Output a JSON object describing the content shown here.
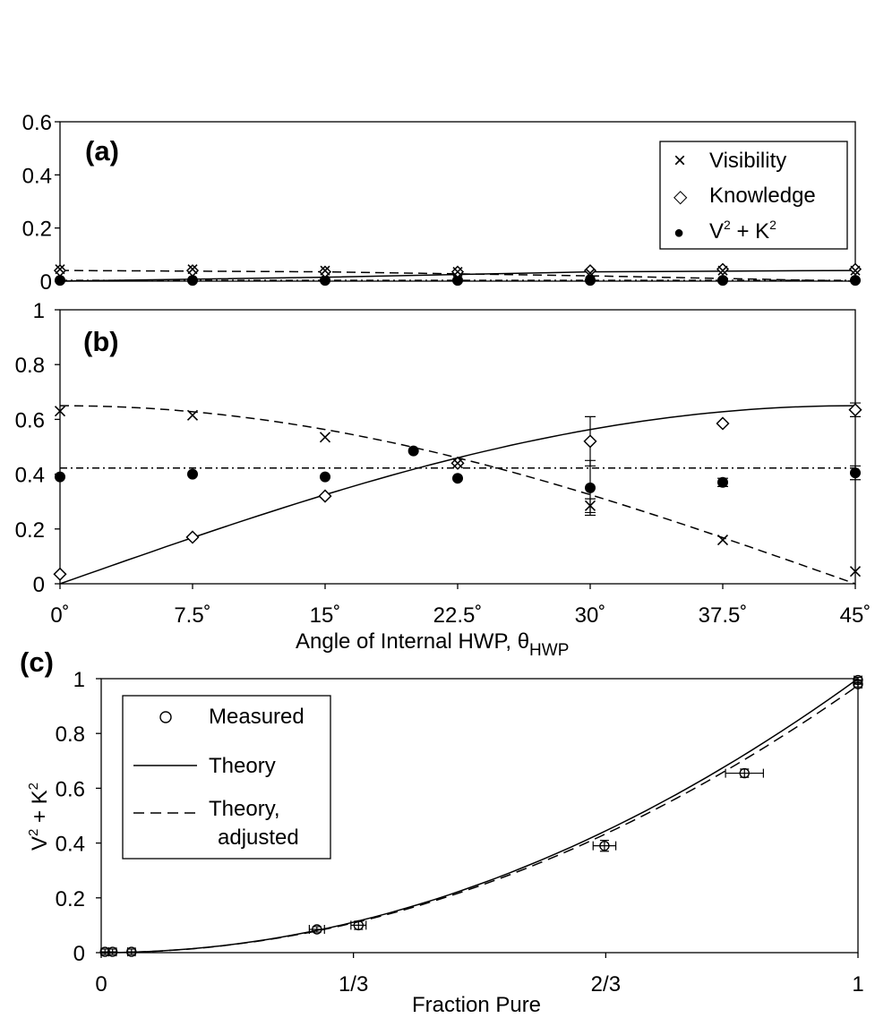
{
  "figure": {
    "xaxis_top_label": "Angle of Internal HWP, θ",
    "xaxis_top_label_sub": "HWP",
    "xaxis_bottom_label": "Fraction Pure",
    "yaxis_c_label": "V² + K²"
  },
  "chart_data": [
    {
      "id": "a",
      "type": "scatter",
      "panel_label": "(a)",
      "xlim": [
        0,
        45
      ],
      "ylim": [
        0,
        0.6
      ],
      "yticks": [
        0,
        0.2,
        0.4,
        0.6
      ],
      "ytick_labels": [
        "0",
        "0.2",
        "0.4",
        "0.6"
      ],
      "x": [
        0,
        7.5,
        15,
        22.5,
        30,
        37.5,
        45
      ],
      "legend": [
        {
          "marker": "×",
          "label": "Visibility"
        },
        {
          "marker": "◇",
          "label": "Knowledge"
        },
        {
          "marker": "●",
          "label": "V² + K²",
          "label_main1": "V",
          "label_sup1": "2",
          "label_mid": " + K",
          "label_sup2": "2"
        }
      ],
      "legend_position": "top-right",
      "series": [
        {
          "name": "Visibility",
          "values": [
            0.045,
            0.045,
            0.04,
            0.035,
            0.03,
            0.04,
            0.04
          ]
        },
        {
          "name": "Knowledge",
          "values": [
            0.04,
            0.04,
            0.035,
            0.035,
            0.04,
            0.045,
            0.045
          ]
        },
        {
          "name": "V² + K²",
          "values": [
            0.003,
            0.003,
            0.003,
            0.003,
            0.003,
            0.003,
            0.003
          ]
        }
      ],
      "theory": {
        "solid": [
          [
            0,
            0.0
          ],
          [
            15,
            0.015
          ],
          [
            30,
            0.035
          ],
          [
            45,
            0.04
          ]
        ],
        "dashed": [
          [
            0,
            0.04
          ],
          [
            15,
            0.035
          ],
          [
            30,
            0.02
          ],
          [
            45,
            0.0
          ]
        ],
        "dashdot": [
          [
            0,
            0.003
          ],
          [
            45,
            0.003
          ]
        ]
      }
    },
    {
      "id": "b",
      "type": "scatter",
      "panel_label": "(b)",
      "xlim": [
        0,
        45
      ],
      "ylim": [
        0,
        1
      ],
      "yticks": [
        0,
        0.2,
        0.4,
        0.6,
        0.8,
        1
      ],
      "ytick_labels": [
        "0",
        "0.2",
        "0.4",
        "0.6",
        "0.8",
        "1"
      ],
      "xticks": [
        0,
        7.5,
        15,
        22.5,
        30,
        37.5,
        45
      ],
      "xtick_labels": [
        "0˚",
        "7.5˚",
        "15˚",
        "22.5˚",
        "30˚",
        "37.5˚",
        "45˚"
      ],
      "series": [
        {
          "name": "Visibility",
          "x": [
            0,
            7.5,
            15,
            22.5,
            30,
            37.5,
            45
          ],
          "values": [
            0.63,
            0.615,
            0.535,
            0.44,
            0.285,
            0.16,
            0.045
          ],
          "err": [
            0.01,
            0.01,
            0.01,
            0.01,
            0.025,
            0.01,
            0.01
          ]
        },
        {
          "name": "Knowledge",
          "x": [
            0,
            7.5,
            15,
            22.5,
            30,
            37.5,
            45
          ],
          "values": [
            0.035,
            0.17,
            0.32,
            0.44,
            0.52,
            0.585,
            0.635
          ],
          "err": [
            0.01,
            0.01,
            0.01,
            0.01,
            0.09,
            0.01,
            0.025
          ]
        },
        {
          "name": "V² + K²",
          "x": [
            0,
            7.5,
            15,
            20,
            22.5,
            30,
            37.5,
            45
          ],
          "values": [
            0.39,
            0.4,
            0.39,
            0.485,
            0.385,
            0.35,
            0.37,
            0.405
          ],
          "err": [
            0.01,
            0.01,
            0.01,
            0.01,
            0.01,
            0.1,
            0.015,
            0.025
          ]
        }
      ],
      "theory": {
        "amplitude": 0.65,
        "sum_level": 0.4225,
        "solid": "0.65·sin(2θ)",
        "dashed": "0.65·cos(2θ)",
        "dashdot": "0.65²"
      }
    },
    {
      "id": "c",
      "type": "scatter",
      "panel_label": "(c)",
      "xlim": [
        0,
        1
      ],
      "ylim": [
        0,
        1
      ],
      "xticks": [
        0,
        0.3333,
        0.6667,
        1
      ],
      "xtick_labels": [
        "0",
        "1/3",
        "2/3",
        "1"
      ],
      "yticks": [
        0,
        0.2,
        0.4,
        0.6,
        0.8,
        1
      ],
      "ytick_labels": [
        "0",
        "0.2",
        "0.4",
        "0.6",
        "0.8",
        "1"
      ],
      "xlabel": "Fraction Pure",
      "ylabel": "V² + K²",
      "legend": [
        {
          "marker": "○",
          "label": "Measured"
        },
        {
          "marker": "solid",
          "label": "Theory"
        },
        {
          "marker": "dashed",
          "label": "Theory,",
          "label2": "adjusted"
        }
      ],
      "legend_position": "top-left",
      "series": [
        {
          "name": "Measured",
          "x": [
            0.005,
            0.015,
            0.04,
            0.285,
            0.34,
            0.665,
            0.85,
            1.0,
            1.0
          ],
          "values": [
            0.003,
            0.003,
            0.003,
            0.085,
            0.1,
            0.39,
            0.655,
            0.995,
            0.98
          ],
          "xerr": [
            0.005,
            0.005,
            0.005,
            0.01,
            0.01,
            0.015,
            0.025,
            0.005,
            0.005
          ],
          "yerr": [
            0.01,
            0.01,
            0.01,
            0.01,
            0.015,
            0.02,
            0.015,
            0.01,
            0.01
          ]
        }
      ],
      "theory": {
        "solid": "y = x²",
        "dashed": "y = 0.975·x²"
      }
    }
  ]
}
